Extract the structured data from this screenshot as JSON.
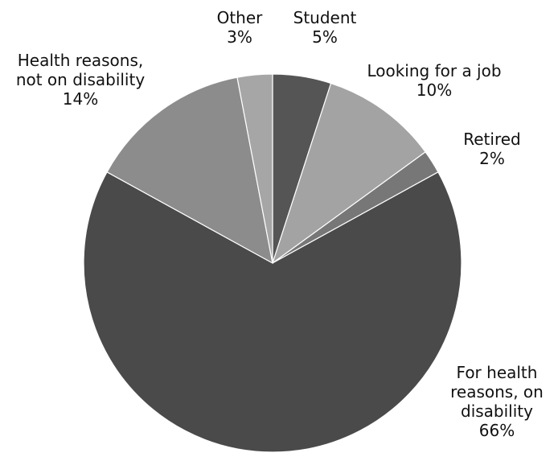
{
  "chart_data": {
    "type": "pie",
    "title": "",
    "start_angle_deg": 0,
    "direction": "clockwise",
    "slices": [
      {
        "label_lines": [
          "Student"
        ],
        "value_label": "5%",
        "value": 5,
        "color": "#555555"
      },
      {
        "label_lines": [
          "Looking for a job"
        ],
        "value_label": "10%",
        "value": 10,
        "color": "#a3a3a3"
      },
      {
        "label_lines": [
          "Retired"
        ],
        "value_label": "2%",
        "value": 2,
        "color": "#777777"
      },
      {
        "label_lines": [
          "For health",
          "reasons, on",
          "disability"
        ],
        "value_label": "66%",
        "value": 66,
        "color": "#4a4a4a"
      },
      {
        "label_lines": [
          "Health reasons,",
          "not on disability"
        ],
        "value_label": "14%",
        "value": 14,
        "color": "#8c8c8c"
      },
      {
        "label_lines": [
          "Other"
        ],
        "value_label": "3%",
        "value": 3,
        "color": "#a6a6a6"
      }
    ]
  }
}
